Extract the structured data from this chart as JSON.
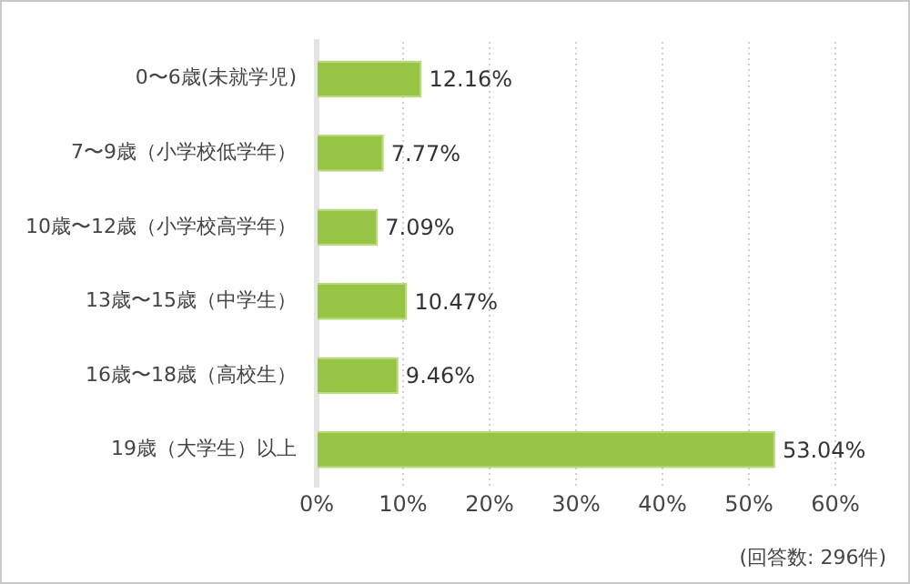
{
  "chart_data": {
    "type": "bar",
    "orientation": "horizontal",
    "categories": [
      "0〜6歳(未就学児)",
      "7〜9歳（小学校低学年）",
      "10歳〜12歳（小学校高学年）",
      "13歳〜15歳（中学生）",
      "16歳〜18歳（高校生）",
      "19歳（大学生）以上"
    ],
    "values": [
      12.16,
      7.77,
      7.09,
      10.47,
      9.46,
      53.04
    ],
    "value_labels": [
      "12.16%",
      "7.77%",
      "7.09%",
      "10.47%",
      "9.46%",
      "53.04%"
    ],
    "color": "#97c444",
    "xlim": [
      0,
      60
    ],
    "xticks": [
      {
        "value": 0,
        "label": "0%"
      },
      {
        "value": 10,
        "label": "10%"
      },
      {
        "value": 20,
        "label": "20%"
      },
      {
        "value": 30,
        "label": "30%"
      },
      {
        "value": 40,
        "label": "40%"
      },
      {
        "value": 50,
        "label": "50%"
      },
      {
        "value": 60,
        "label": "60%"
      }
    ],
    "grid": "x",
    "legend": false,
    "annotations": [
      "(回答数: 296件)"
    ]
  }
}
